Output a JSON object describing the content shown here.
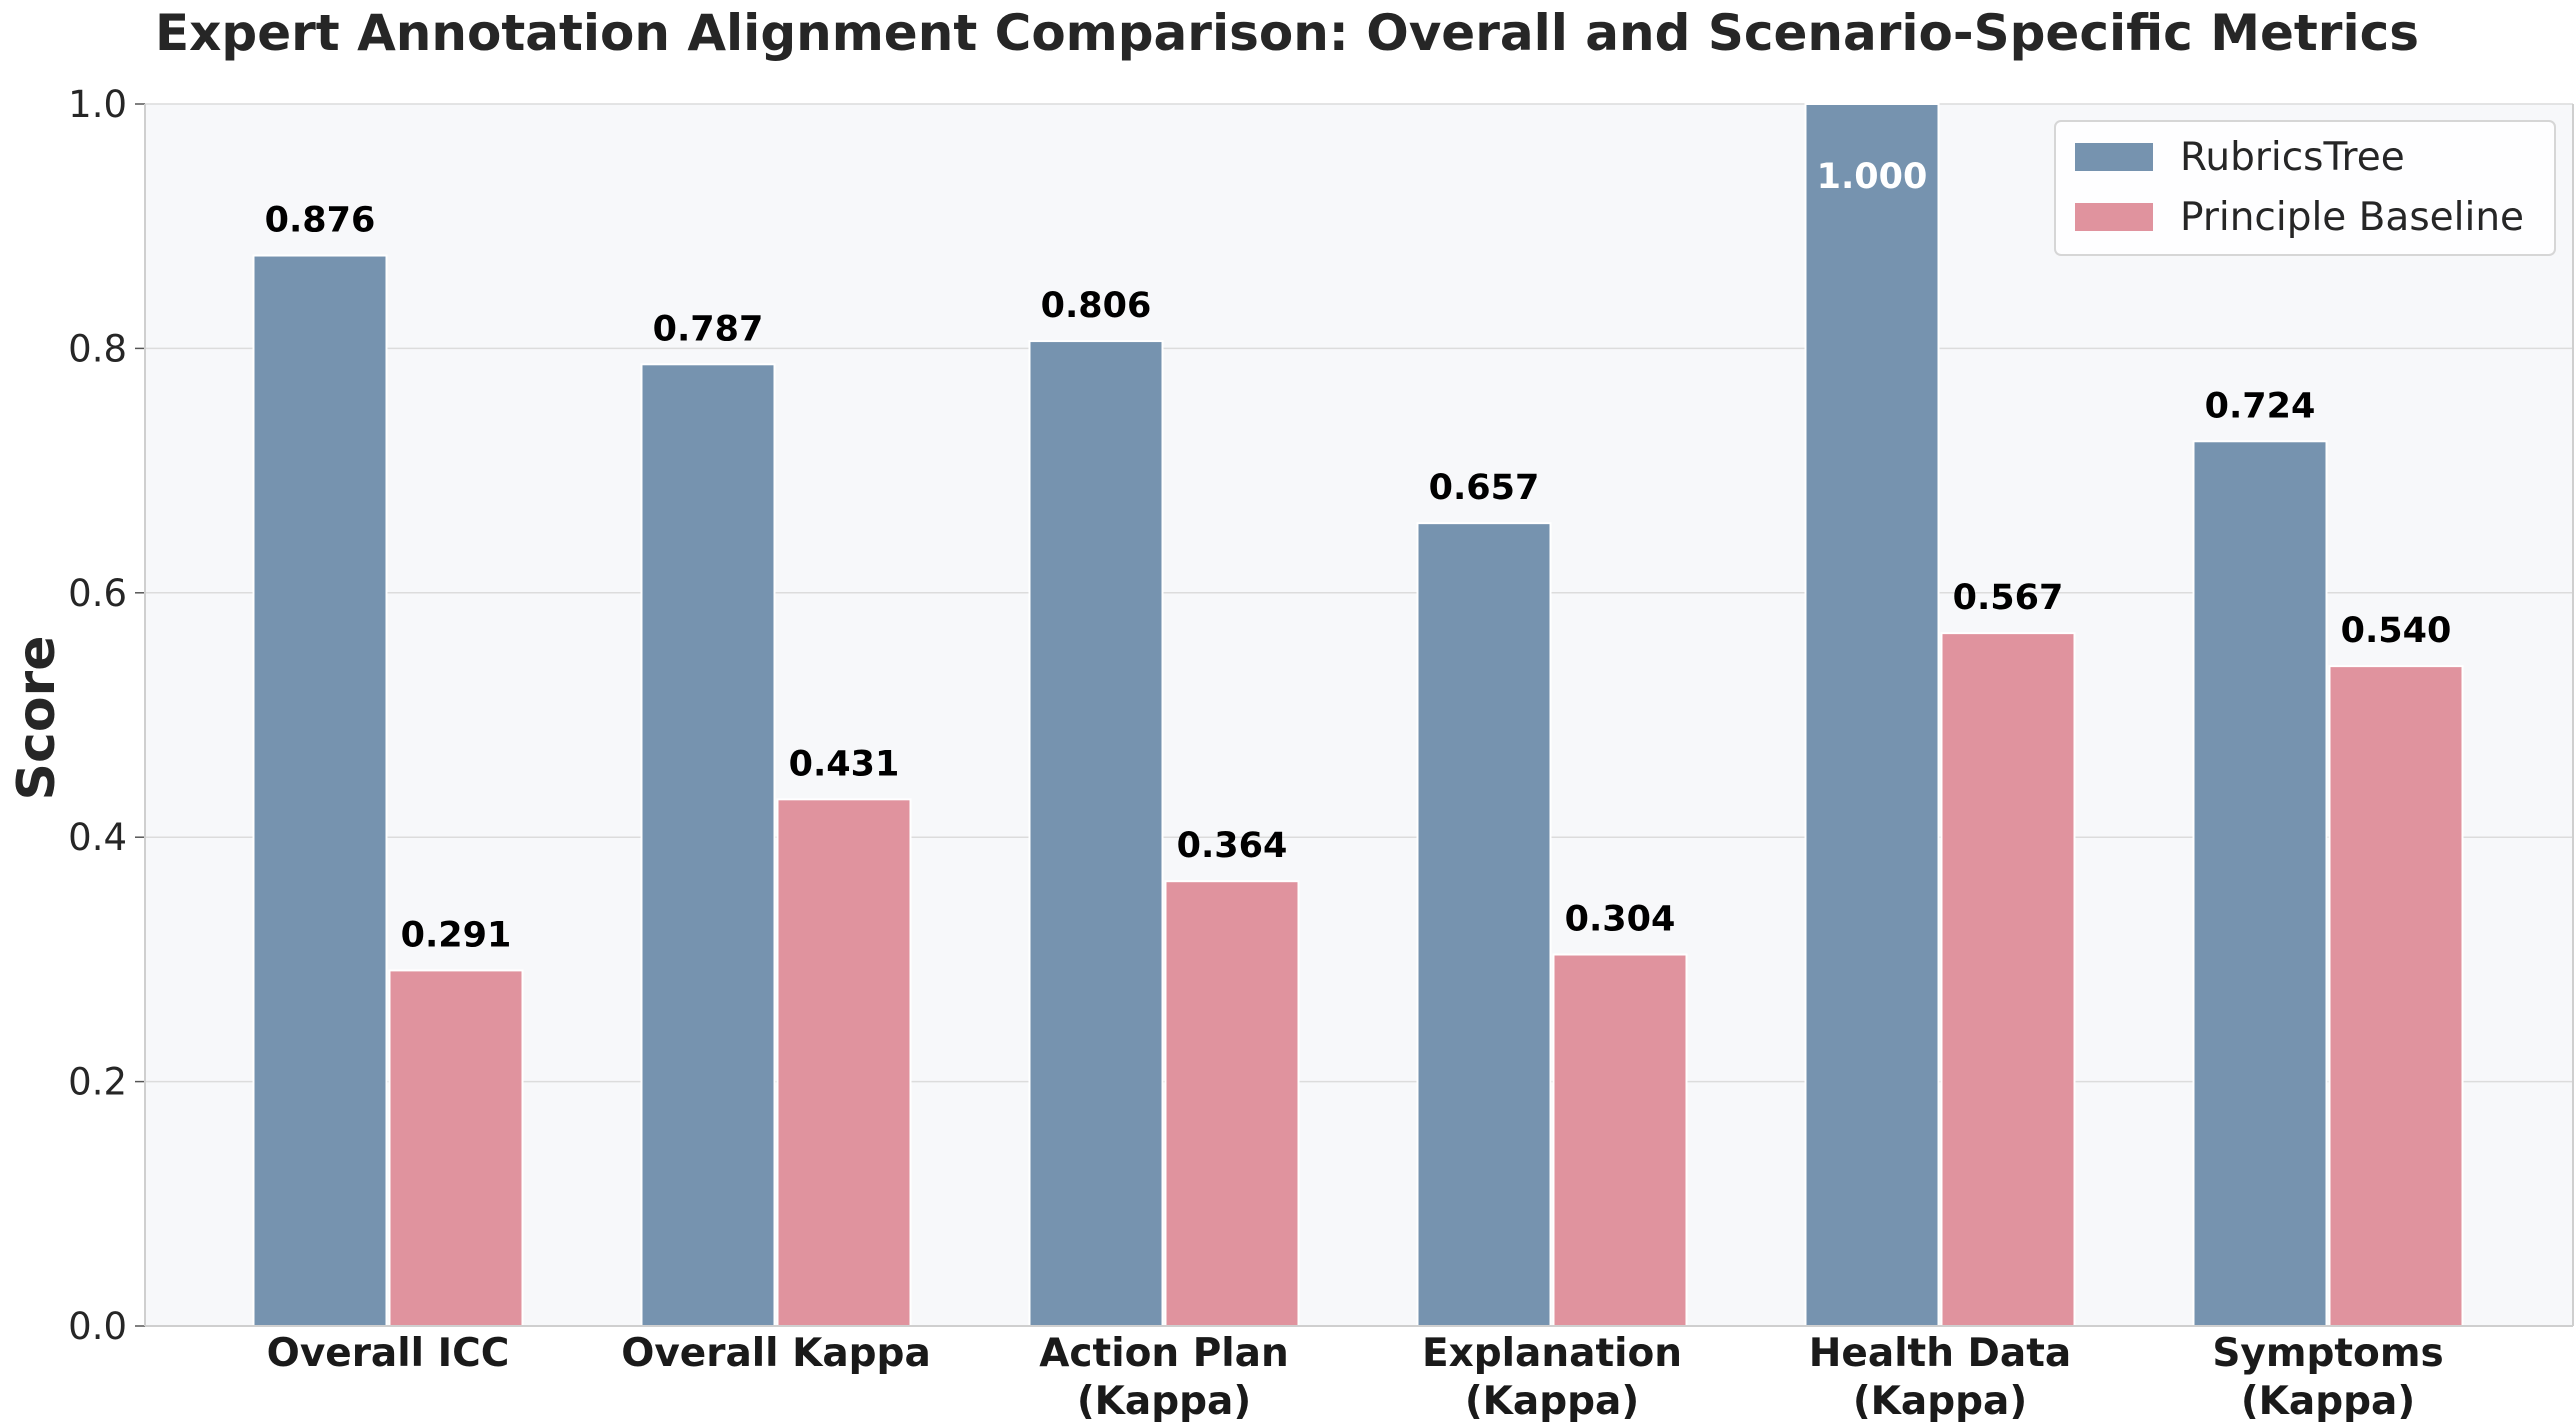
{
  "chart_data": {
    "type": "bar",
    "title": "Expert Annotation Alignment Comparison: Overall and Scenario-Specific Metrics",
    "xlabel": "",
    "ylabel": "Score",
    "ylim": [
      0,
      1.0
    ],
    "yticks": [
      "0.0",
      "0.2",
      "0.4",
      "0.6",
      "0.8",
      "1.0"
    ],
    "categories": [
      [
        "Overall ICC"
      ],
      [
        "Overall Kappa"
      ],
      [
        "Action Plan",
        "(Kappa)"
      ],
      [
        "Explanation",
        "(Kappa)"
      ],
      [
        "Health Data",
        "(Kappa)"
      ],
      [
        "Symptoms",
        "(Kappa)"
      ]
    ],
    "series": [
      {
        "name": "RubricsTree",
        "color": "#7693AF",
        "values": [
          0.876,
          0.787,
          0.806,
          0.657,
          1.0,
          0.724
        ],
        "labels": [
          "0.876",
          "0.787",
          "0.806",
          "0.657",
          "1.000",
          "0.724"
        ]
      },
      {
        "name": "Principle Baseline",
        "color": "#E0939E",
        "values": [
          0.291,
          0.431,
          0.364,
          0.304,
          0.567,
          0.54
        ],
        "labels": [
          "0.291",
          "0.431",
          "0.364",
          "0.304",
          "0.567",
          "0.540"
        ]
      }
    ],
    "grid": true,
    "legend_position": "top-right",
    "background_color": "#F7F8FA"
  }
}
